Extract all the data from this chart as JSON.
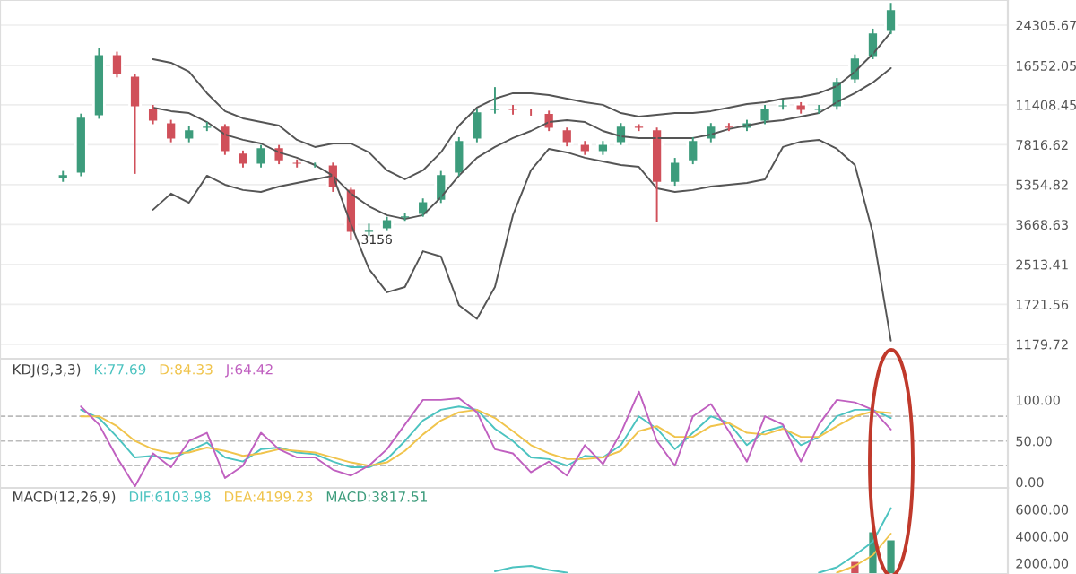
{
  "chart_data": [
    {
      "type": "candlestick",
      "categories": [
        null,
        null,
        null,
        null,
        null,
        null,
        null,
        null,
        null,
        null,
        null,
        null,
        null,
        null,
        null,
        null,
        null,
        null,
        null,
        null,
        null,
        null,
        null,
        null,
        null,
        null,
        null,
        null,
        null,
        null,
        null,
        null,
        null,
        null,
        null,
        null,
        null,
        null,
        null,
        null,
        null,
        null,
        null,
        null,
        null,
        null,
        null,
        null,
        null,
        null,
        null,
        null,
        null,
        null,
        null,
        null
      ],
      "ohlc": [
        null,
        null,
        null,
        [
          5630,
          6100,
          5500,
          5930
        ],
        [
          5930,
          10500,
          5800,
          10210
        ],
        [
          10210,
          19480,
          10000,
          18510
        ],
        [
          18510,
          18900,
          14800,
          15090
        ],
        [
          15090,
          15300,
          5930,
          11120
        ],
        [
          11120,
          11400,
          9500,
          9700
        ],
        [
          9700,
          9900,
          8000,
          8190
        ],
        [
          8190,
          9300,
          8000,
          9070
        ],
        [
          9070,
          9700,
          8900,
          9380
        ],
        [
          9380,
          9500,
          7100,
          7270
        ],
        [
          7270,
          7400,
          6300,
          6450
        ],
        [
          6450,
          7800,
          6300,
          7650
        ],
        [
          7650,
          7800,
          6500,
          6670
        ],
        [
          6670,
          6800,
          6300,
          6450
        ],
        [
          6450,
          6600,
          6300,
          6500
        ],
        [
          6500,
          6600,
          5000,
          5170
        ],
        [
          5170,
          5200,
          3156,
          3380
        ],
        [
          3380,
          3700,
          3300,
          3500
        ],
        [
          3500,
          3950,
          3450,
          3870
        ],
        [
          3870,
          4100,
          3800,
          4010
        ],
        [
          4010,
          4700,
          3950,
          4590
        ],
        [
          4590,
          6100,
          4500,
          5930
        ],
        [
          5930,
          8400,
          5800,
          8190
        ],
        [
          8190,
          11000,
          8000,
          10750
        ],
        [
          10750,
          13500,
          10500,
          11120
        ],
        [
          11120,
          11400,
          10400,
          10750
        ],
        [
          10750,
          11000,
          10300,
          10600
        ],
        [
          10600,
          10800,
          8900,
          9070
        ],
        [
          9070,
          9200,
          7700,
          7910
        ],
        [
          7910,
          8100,
          7100,
          7270
        ],
        [
          7270,
          8100,
          7100,
          7910
        ],
        [
          7910,
          9600,
          7800,
          9380
        ],
        [
          9380,
          9500,
          8900,
          9070
        ],
        [
          9070,
          9200,
          3745,
          5440
        ],
        [
          5440,
          6900,
          5300,
          6670
        ],
        [
          6670,
          8400,
          6500,
          8190
        ],
        [
          8190,
          9600,
          8000,
          9380
        ],
        [
          9380,
          9600,
          8900,
          9070
        ],
        [
          9070,
          9900,
          8900,
          9700
        ],
        [
          9700,
          11400,
          9500,
          11120
        ],
        [
          11120,
          11900,
          10900,
          11500
        ],
        [
          11500,
          11700,
          10500,
          10750
        ],
        [
          10750,
          11400,
          10500,
          11120
        ],
        [
          11120,
          14700,
          10900,
          14350
        ],
        [
          14350,
          18400,
          14100,
          17900
        ],
        [
          17900,
          23500,
          17600,
          22710
        ],
        [
          22710,
          30000,
          22300,
          28330
        ],
        null,
        null,
        null,
        null,
        null,
        null
      ],
      "colors": [
        null,
        null,
        null,
        "#3d9c7c",
        "#3d9c7c",
        "#3d9c7c",
        "#d0505a",
        "#d0505a",
        "#d0505a",
        "#d0505a",
        "#3d9c7c",
        "#3d9c7c",
        "#d0505a",
        "#d0505a",
        "#3d9c7c",
        "#d0505a",
        "#d0505a",
        "#3d9c7c",
        "#d0505a",
        "#d0505a",
        "#3d9c7c",
        "#3d9c7c",
        "#3d9c7c",
        "#3d9c7c",
        "#3d9c7c",
        "#3d9c7c",
        "#3d9c7c",
        "#3d9c7c",
        "#d0505a",
        "#d0505a",
        "#d0505a",
        "#d0505a",
        "#d0505a",
        "#3d9c7c",
        "#3d9c7c",
        "#d0505a",
        "#d0505a",
        "#3d9c7c",
        "#3d9c7c",
        "#3d9c7c",
        "#d0505a",
        "#3d9c7c",
        "#3d9c7c",
        "#3d9c7c",
        "#d0505a",
        "#3d9c7c",
        "#3d9c7c",
        "#3d9c7c",
        "#3d9c7c",
        "#3d9c7c",
        null,
        null,
        null,
        null,
        null,
        null
      ],
      "series": [
        {
          "type": "line",
          "color": "#555555",
          "values": [
            null,
            null,
            null,
            null,
            null,
            null,
            null,
            null,
            17600,
            17010,
            15620,
            12740,
            10750,
            10040,
            9700,
            9380,
            8190,
            7650,
            7910,
            7910,
            7270,
            6130,
            5630,
            6130,
            7270,
            9380,
            11120,
            12100,
            12740,
            12740,
            12520,
            12100,
            11700,
            11410,
            10560,
            10210,
            10380,
            10560,
            10560,
            10750,
            11120,
            11500,
            11700,
            12100,
            12310,
            12740,
            13630,
            15620,
            18510,
            22710,
            null,
            null,
            null,
            null,
            null,
            null
          ]
        },
        {
          "type": "line",
          "color": "#555555",
          "values": [
            null,
            null,
            null,
            null,
            null,
            null,
            null,
            null,
            11120,
            10750,
            10560,
            9700,
            8610,
            8190,
            7910,
            7270,
            6910,
            6450,
            5830,
            4920,
            4360,
            4010,
            3870,
            4010,
            4750,
            5830,
            6910,
            7650,
            8330,
            8910,
            9700,
            9870,
            9700,
            8910,
            8470,
            8330,
            8330,
            8330,
            8330,
            8610,
            9070,
            9380,
            9700,
            9870,
            10210,
            10560,
            11700,
            12740,
            14110,
            16160,
            null,
            null,
            null,
            null,
            null,
            null
          ]
        },
        {
          "type": "line",
          "color": "#555555",
          "values": [
            null,
            null,
            null,
            null,
            null,
            null,
            null,
            null,
            4220,
            4920,
            4510,
            5830,
            5350,
            5090,
            5000,
            5260,
            5440,
            5630,
            5830,
            3680,
            2410,
            1930,
            2030,
            2850,
            2710,
            1710,
            1500,
            2030,
            4010,
            6130,
            7520,
            7270,
            6910,
            6670,
            6450,
            6340,
            5170,
            5000,
            5090,
            5260,
            5350,
            5440,
            5630,
            7650,
            8050,
            8190,
            7520,
            6450,
            3380,
            1220,
            null,
            null,
            null,
            null,
            null,
            null
          ]
        }
      ],
      "log": true,
      "ylim": [
        1028,
        30830
      ],
      "yticks": [
        1179.72,
        1721.56,
        2513.41,
        3668.63,
        5354.82,
        7816.62,
        11408.45,
        16552.05,
        24305.67
      ],
      "grid": "y",
      "tick_labels": "y",
      "annotations": [
        {
          "text": "3156",
          "y": 3156
        }
      ]
    },
    {
      "type": "line",
      "title": "KDJ(9,3,3)",
      "legend": "top left",
      "categories": [
        null,
        null,
        null,
        null,
        null,
        null,
        null,
        null,
        null,
        null,
        null,
        null,
        null,
        null,
        null,
        null,
        null,
        null,
        null,
        null,
        null,
        null,
        null,
        null,
        null,
        null,
        null,
        null,
        null,
        null,
        null,
        null,
        null,
        null,
        null,
        null,
        null,
        null,
        null,
        null,
        null,
        null,
        null,
        null,
        null,
        null,
        null,
        null,
        null,
        null,
        null,
        null,
        null,
        null,
        null,
        null
      ],
      "series": [
        {
          "name": "K:77.69",
          "color": "#4cc3c0",
          "values": [
            null,
            null,
            null,
            null,
            88,
            78,
            55,
            30,
            32,
            28,
            38,
            48,
            30,
            25,
            40,
            42,
            36,
            34,
            25,
            18,
            18,
            28,
            50,
            75,
            88,
            92,
            88,
            65,
            50,
            30,
            28,
            20,
            32,
            30,
            45,
            80,
            65,
            40,
            60,
            80,
            72,
            45,
            62,
            68,
            45,
            55,
            80,
            88,
            88,
            78,
            null,
            null,
            null,
            null,
            null,
            null
          ]
        },
        {
          "name": "D:84.33",
          "color": "#f0c44c",
          "values": [
            null,
            null,
            null,
            null,
            80,
            80,
            68,
            50,
            40,
            35,
            36,
            42,
            38,
            32,
            35,
            40,
            38,
            36,
            30,
            24,
            20,
            24,
            38,
            58,
            75,
            85,
            88,
            78,
            62,
            45,
            35,
            28,
            28,
            30,
            38,
            62,
            68,
            55,
            55,
            68,
            72,
            60,
            58,
            65,
            55,
            55,
            68,
            80,
            86,
            84,
            null,
            null,
            null,
            null,
            null,
            null
          ]
        },
        {
          "name": "J:64.42",
          "color": "#c060c0",
          "values": [
            null,
            null,
            null,
            null,
            92,
            70,
            30,
            -5,
            35,
            18,
            50,
            60,
            5,
            20,
            60,
            40,
            30,
            30,
            15,
            8,
            20,
            40,
            70,
            100,
            100,
            102,
            85,
            40,
            35,
            12,
            25,
            8,
            45,
            22,
            60,
            110,
            50,
            20,
            80,
            95,
            62,
            25,
            80,
            70,
            25,
            70,
            100,
            97,
            88,
            64,
            null,
            null,
            null,
            null,
            null,
            null
          ]
        }
      ],
      "ylim": [
        -7,
        150
      ],
      "yticks": [
        {
          "value": 0,
          "label": "0.00"
        },
        {
          "value": 50,
          "label": "50.00"
        },
        {
          "value": 100,
          "label": "100.00"
        }
      ],
      "ref_lines": [
        {
          "axis": "y",
          "value": 20,
          "color": "#bbbbbb",
          "line_style": "dashed"
        },
        {
          "axis": "y",
          "value": 50,
          "color": "#bbbbbb",
          "line_style": "dashed"
        },
        {
          "axis": "y",
          "value": 80,
          "color": "#bbbbbb",
          "line_style": "dashed"
        }
      ],
      "tick_labels": "y"
    },
    {
      "type": "line",
      "title": "MACD(12,26,9)",
      "legend": "top left",
      "categories": [
        null,
        null,
        null,
        null,
        null,
        null,
        null,
        null,
        null,
        null,
        null,
        null,
        null,
        null,
        null,
        null,
        null,
        null,
        null,
        null,
        null,
        null,
        null,
        null,
        null,
        null,
        null,
        null,
        null,
        null,
        null,
        null,
        null,
        null,
        null,
        null,
        null,
        null,
        null,
        null,
        null,
        null,
        null,
        null,
        null,
        null,
        null,
        null,
        null,
        null,
        null,
        null,
        null,
        null,
        null,
        null
      ],
      "series": [
        {
          "name": "DIF:6103.98",
          "color": "#4cc3c0",
          "values": [
            null,
            null,
            null,
            null,
            null,
            null,
            null,
            null,
            null,
            null,
            null,
            null,
            null,
            null,
            null,
            null,
            null,
            null,
            null,
            null,
            null,
            null,
            null,
            null,
            null,
            null,
            null,
            1400,
            1700,
            1800,
            1500,
            1300,
            null,
            null,
            null,
            null,
            null,
            null,
            null,
            null,
            null,
            null,
            null,
            null,
            null,
            1300,
            1700,
            2600,
            3600,
            6100,
            null,
            null,
            null,
            null,
            null,
            null
          ]
        },
        {
          "name": "DEA:4199.23",
          "color": "#f0c44c",
          "values": [
            null,
            null,
            null,
            null,
            null,
            null,
            null,
            null,
            null,
            null,
            null,
            null,
            null,
            null,
            null,
            null,
            null,
            null,
            null,
            null,
            null,
            null,
            null,
            null,
            null,
            null,
            null,
            null,
            null,
            null,
            null,
            null,
            null,
            null,
            null,
            null,
            null,
            null,
            null,
            null,
            null,
            null,
            null,
            null,
            null,
            null,
            1300,
            1800,
            2600,
            4200,
            null,
            null,
            null,
            null,
            null,
            null
          ]
        },
        {
          "name": "MACD:3817.51",
          "type": "bar",
          "color": "#3d9c7c",
          "colors": [
            null,
            null,
            null,
            null,
            null,
            null,
            null,
            null,
            null,
            null,
            null,
            null,
            null,
            null,
            null,
            null,
            null,
            null,
            null,
            null,
            null,
            null,
            null,
            null,
            null,
            null,
            null,
            null,
            null,
            null,
            null,
            null,
            null,
            null,
            null,
            null,
            null,
            null,
            null,
            null,
            null,
            null,
            null,
            null,
            null,
            null,
            null,
            "#d0505a",
            "#3d9c7c",
            "#3d9c7c",
            null,
            null,
            null,
            null,
            null,
            null
          ],
          "values": [
            null,
            null,
            null,
            null,
            null,
            null,
            null,
            null,
            null,
            null,
            null,
            null,
            null,
            null,
            null,
            null,
            null,
            null,
            null,
            null,
            null,
            null,
            null,
            null,
            null,
            null,
            null,
            null,
            null,
            null,
            null,
            null,
            null,
            null,
            null,
            null,
            null,
            null,
            null,
            null,
            null,
            null,
            null,
            null,
            null,
            null,
            null,
            2200,
            4400,
            3800,
            null,
            null,
            null,
            null,
            null,
            null
          ]
        }
      ],
      "ylim": [
        1200,
        7600
      ],
      "yticks": [
        {
          "value": 2000,
          "label": "2000.00"
        },
        {
          "value": 4000,
          "label": "4000.00"
        },
        {
          "value": 6000,
          "label": "6000.00"
        }
      ],
      "tick_labels": "y"
    }
  ]
}
